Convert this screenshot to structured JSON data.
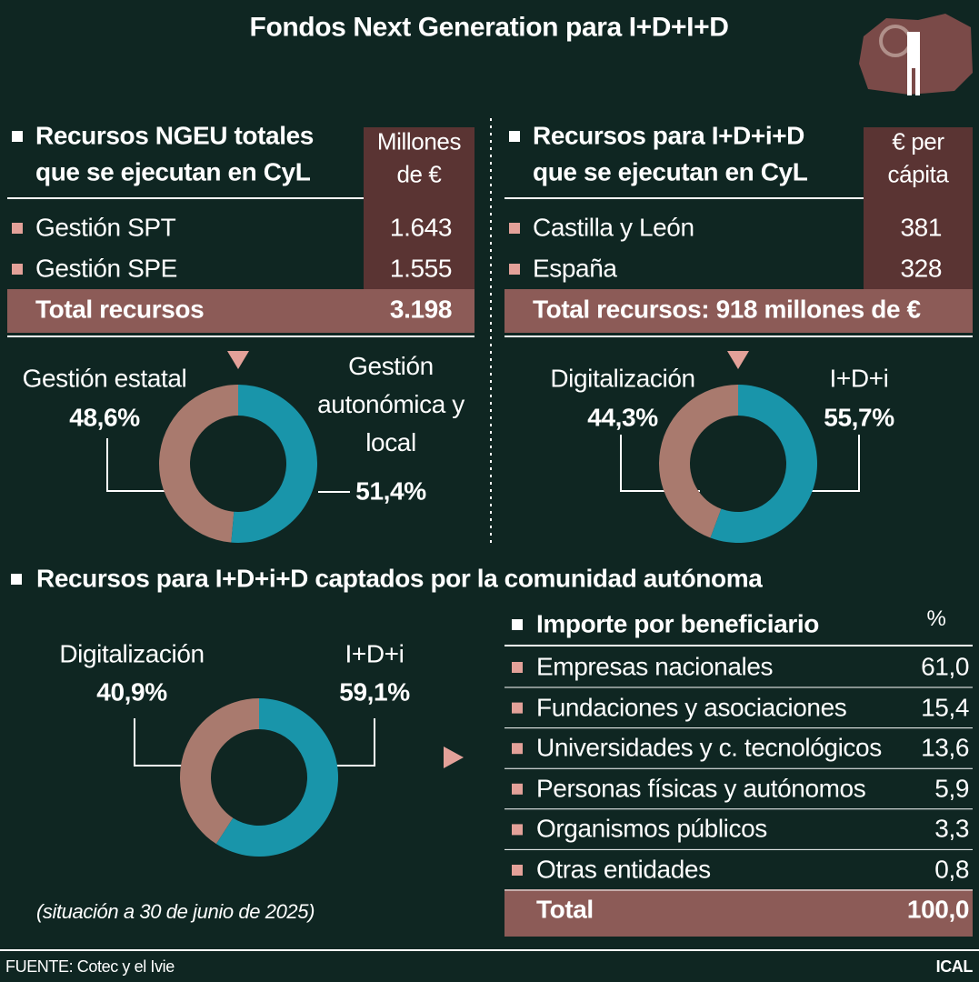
{
  "title": "Fondos Next Generation para I+D+I+D",
  "tables": [
    {
      "title_lines": [
        "Recursos NGEU totales",
        "que se ejecutan en CyL"
      ],
      "unit_lines": [
        "Millones",
        "de €"
      ],
      "rows": [
        [
          "Gestión SPT",
          "1.643"
        ],
        [
          "Gestión SPE",
          "1.555"
        ]
      ],
      "total": [
        "Total recursos",
        "3.198"
      ]
    },
    {
      "title_lines": [
        "Recursos para I+D+i+D",
        "que se ejecutan en CyL"
      ],
      "unit_lines": [
        "€ per",
        "cápita"
      ],
      "rows": [
        [
          "Castilla y León",
          "381"
        ],
        [
          "España",
          "328"
        ]
      ],
      "total": [
        "Total recursos: 918 millones de €"
      ]
    },
    {
      "title_lines": [
        "Importe por beneficiario"
      ],
      "unit_lines": [
        "%"
      ],
      "rows": [
        [
          "Empresas nacionales",
          "61,0"
        ],
        [
          "Fundaciones y asociaciones",
          "15,4"
        ],
        [
          "Universidades y c. tecnológicos",
          "13,6"
        ],
        [
          "Personas físicas y autónomos",
          "5,9"
        ],
        [
          "Organismos públicos",
          "3,3"
        ],
        [
          "Otras entidades",
          "0,8"
        ]
      ],
      "total": [
        "Total",
        "100,0"
      ]
    }
  ],
  "chart_data": [
    {
      "type": "pie",
      "categories": [
        "Gestión estatal",
        "Gestión autonómica y local"
      ],
      "values": [
        48.6,
        51.4
      ],
      "value_labels": [
        "48,6%",
        "51,4%"
      ],
      "colors": [
        "#a97a6e",
        "#1995aa"
      ]
    },
    {
      "type": "pie",
      "categories": [
        "Digitalización",
        "I+D+i"
      ],
      "values": [
        44.3,
        55.7
      ],
      "value_labels": [
        "44,3%",
        "55,7%"
      ],
      "colors": [
        "#a97a6e",
        "#1995aa"
      ]
    },
    {
      "type": "pie",
      "title": "Recursos para I+D+i+D captados por la comunidad autónoma",
      "categories": [
        "Digitalización",
        "I+D+i"
      ],
      "values": [
        40.9,
        59.1
      ],
      "value_labels": [
        "40,9%",
        "59,1%"
      ],
      "colors": [
        "#a97a6e",
        "#1995aa"
      ]
    }
  ],
  "note": "(situación a 30 de junio de 2025)",
  "source": "FUENTE: Cotec y el Ivie",
  "brand": "ICAL"
}
